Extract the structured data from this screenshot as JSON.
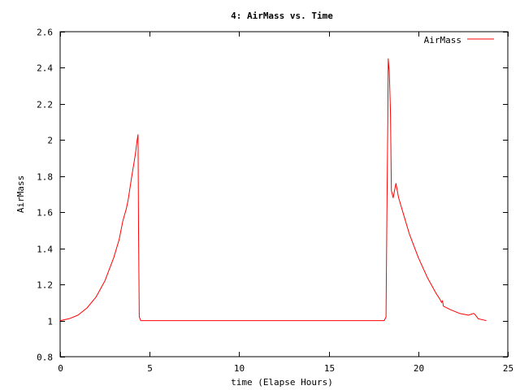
{
  "chart_data": {
    "type": "line",
    "title": "4: AirMass vs. Time",
    "xlabel": "time (Elapse Hours)",
    "ylabel": "AirMass",
    "xlim": [
      0,
      25
    ],
    "ylim": [
      0.8,
      2.6
    ],
    "xticks": [
      0,
      5,
      10,
      15,
      20,
      25
    ],
    "xtick_labels": [
      "0",
      "5",
      "10",
      "15",
      "20",
      "25"
    ],
    "yticks": [
      0.8,
      1,
      1.2,
      1.4,
      1.6,
      1.8,
      2,
      2.2,
      2.4,
      2.6
    ],
    "ytick_labels": [
      "0.8",
      "1",
      "1.2",
      "1.4",
      "1.6",
      "1.8",
      "2",
      "2.2",
      "2.4",
      "2.6"
    ],
    "grid": false,
    "legend_position": "top-right",
    "series": [
      {
        "name": "AirMass",
        "color": "#ff0000",
        "points": [
          [
            0.0,
            1.0
          ],
          [
            0.5,
            1.01
          ],
          [
            1.0,
            1.03
          ],
          [
            1.5,
            1.07
          ],
          [
            2.0,
            1.13
          ],
          [
            2.5,
            1.22
          ],
          [
            3.0,
            1.35
          ],
          [
            3.3,
            1.45
          ],
          [
            3.5,
            1.55
          ],
          [
            3.7,
            1.62
          ],
          [
            3.8,
            1.67
          ],
          [
            4.0,
            1.8
          ],
          [
            4.2,
            1.92
          ],
          [
            4.3,
            2.0
          ],
          [
            4.35,
            2.03
          ],
          [
            4.38,
            1.5
          ],
          [
            4.42,
            1.02
          ],
          [
            4.5,
            1.0
          ],
          [
            10.0,
            1.0
          ],
          [
            15.0,
            1.0
          ],
          [
            18.1,
            1.0
          ],
          [
            18.2,
            1.02
          ],
          [
            18.25,
            1.6
          ],
          [
            18.3,
            2.1
          ],
          [
            18.32,
            2.45
          ],
          [
            18.38,
            2.38
          ],
          [
            18.45,
            2.15
          ],
          [
            18.5,
            1.72
          ],
          [
            18.6,
            1.68
          ],
          [
            18.75,
            1.76
          ],
          [
            18.9,
            1.68
          ],
          [
            19.2,
            1.58
          ],
          [
            19.5,
            1.48
          ],
          [
            20.0,
            1.35
          ],
          [
            20.5,
            1.24
          ],
          [
            21.0,
            1.15
          ],
          [
            21.2,
            1.12
          ],
          [
            21.3,
            1.1
          ],
          [
            21.35,
            1.11
          ],
          [
            21.4,
            1.08
          ],
          [
            21.8,
            1.06
          ],
          [
            22.3,
            1.04
          ],
          [
            22.8,
            1.03
          ],
          [
            23.1,
            1.04
          ],
          [
            23.2,
            1.03
          ],
          [
            23.35,
            1.01
          ],
          [
            23.8,
            1.0
          ]
        ]
      }
    ]
  }
}
